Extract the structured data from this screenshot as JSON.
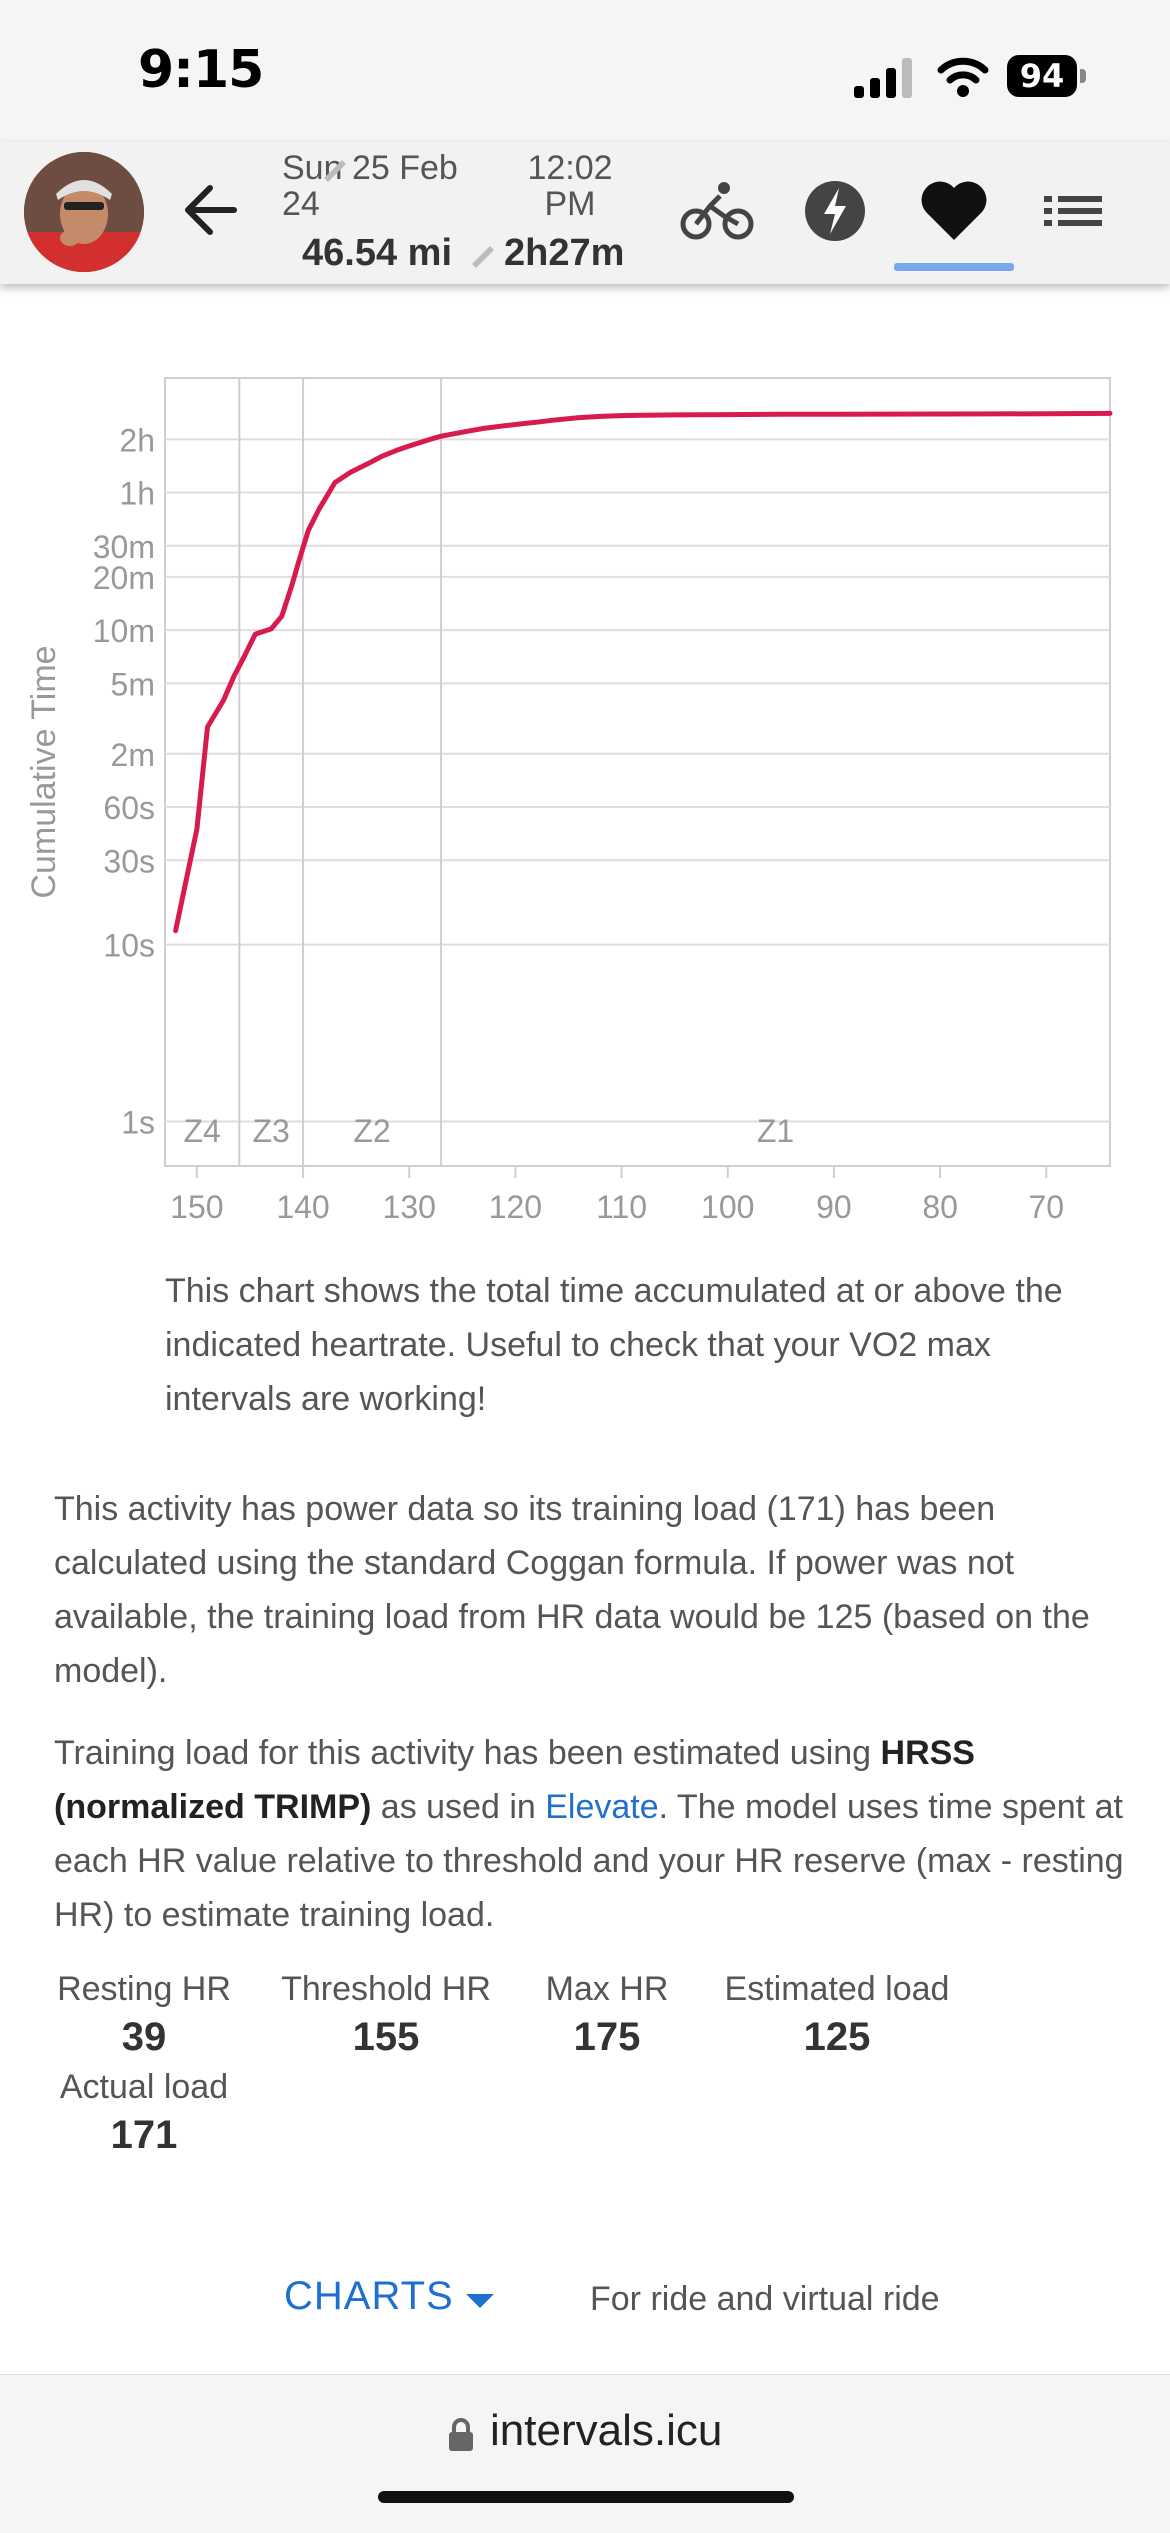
{
  "status_bar": {
    "time": "9:15",
    "battery": "94"
  },
  "header": {
    "date": "Sun 25 Feb 24",
    "start_time": "12:02 PM",
    "distance": "46.54 mi",
    "duration": "2h27m",
    "tabs": [
      {
        "name": "bike-icon",
        "active": false
      },
      {
        "name": "lightning-icon",
        "active": false
      },
      {
        "name": "heart-icon",
        "active": true
      },
      {
        "name": "list-icon",
        "active": false
      }
    ]
  },
  "chart_data": {
    "type": "line",
    "title": "",
    "xlabel": "",
    "ylabel": "Cumulative Time",
    "x_axis": "heart rate, reversed (high to low)",
    "xlim": [
      153,
      64
    ],
    "x_ticks": [
      "150",
      "140",
      "130",
      "120",
      "110",
      "100",
      "90",
      "80",
      "70"
    ],
    "x_tick_values": [
      150,
      140,
      130,
      120,
      110,
      100,
      90,
      80,
      70
    ],
    "y_scale": "log",
    "y_ticks": [
      "1s",
      "10s",
      "30s",
      "60s",
      "2m",
      "5m",
      "10m",
      "20m",
      "30m",
      "1h",
      "2h"
    ],
    "y_tick_seconds": [
      1,
      10,
      30,
      60,
      120,
      300,
      600,
      1200,
      1800,
      3600,
      7200
    ],
    "zones": [
      {
        "label": "Z4",
        "from": 153,
        "to": 146
      },
      {
        "label": "Z3",
        "from": 146,
        "to": 140
      },
      {
        "label": "Z2",
        "from": 140,
        "to": 127
      },
      {
        "label": "Z1",
        "from": 127,
        "to": 64
      }
    ],
    "color": "#d81b4f",
    "grid": true,
    "series": [
      {
        "x": [
          152,
          150,
          149,
          147.5,
          146.5,
          145.5,
          144.5,
          143,
          142,
          141,
          140.5,
          139.5,
          138.5,
          137,
          135.5,
          134,
          132.5,
          131,
          130,
          129,
          128,
          127,
          125,
          123,
          121,
          119.5,
          118,
          116,
          114,
          112,
          110,
          108,
          105,
          100,
          95,
          90,
          85,
          80,
          75,
          70,
          64
        ],
        "y": [
          12,
          45,
          170,
          240,
          330,
          430,
          570,
          610,
          720,
          1100,
          1400,
          2200,
          2900,
          4100,
          4700,
          5200,
          5800,
          6300,
          6600,
          6900,
          7200,
          7500,
          7900,
          8300,
          8600,
          8800,
          9000,
          9300,
          9550,
          9700,
          9800,
          9860,
          9900,
          9940,
          9970,
          9990,
          10000,
          10010,
          10030,
          10050,
          10090
        ]
      }
    ]
  },
  "chart_caption": "This chart shows the total time accumulated at or above the indicated heartrate. Useful to check that your VO2 max intervals are working!",
  "para1": "This activity has power data so its training load (171) has been calculated using the standard Coggan formula. If power was not available, the training load from HR data would be 125 (based on the model).",
  "para2": {
    "pre": "Training load for this activity has been estimated using ",
    "bold": "HRSS (normalized TRIMP)",
    "mid": " as used in ",
    "link": "Elevate",
    "post": ". The model uses time spent at each HR value relative to threshold and your HR reserve (max - resting HR) to estimate training load."
  },
  "stats": [
    {
      "label": "Resting HR",
      "value": "39"
    },
    {
      "label": "Threshold HR",
      "value": "155"
    },
    {
      "label": "Max HR",
      "value": "175"
    },
    {
      "label": "Estimated load",
      "value": "125"
    },
    {
      "label": "Actual load",
      "value": "171"
    }
  ],
  "charts_menu": {
    "label": "CHARTS",
    "note": "For ride and virtual ride"
  },
  "browser": {
    "url": "intervals.icu"
  }
}
